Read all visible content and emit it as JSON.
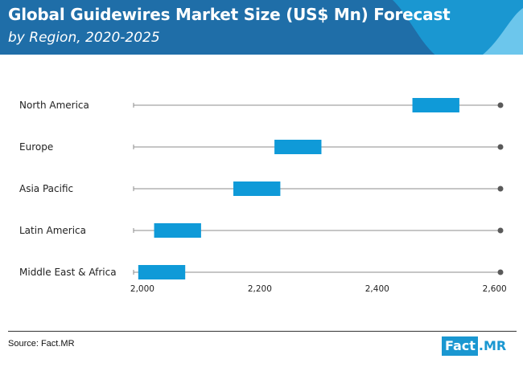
{
  "header": {
    "title": "Global Guidewires Market Size (US$ Mn) Forecast",
    "subtitle": "by Region, 2020-2025",
    "colors": {
      "band": "#1f6ea8",
      "wave_dark": "#1a97d1",
      "wave_light": "#6cc6ec"
    }
  },
  "chart_data": {
    "type": "bar",
    "subtype": "floating-range",
    "categories": [
      "North America",
      "Europe",
      "Asia Pacific",
      "Latin America",
      "Middle East & Africa"
    ],
    "ranges": [
      {
        "category": "North America",
        "low": 2460,
        "high": 2540
      },
      {
        "category": "Europe",
        "low": 2225,
        "high": 2305
      },
      {
        "category": "Asia Pacific",
        "low": 2155,
        "high": 2235
      },
      {
        "category": "Latin America",
        "low": 2020,
        "high": 2100
      },
      {
        "category": "Middle East & Africa",
        "low": 1993,
        "high": 2073
      }
    ],
    "xlim": [
      1985,
      2610
    ],
    "x_ticks": [
      2000,
      2200,
      2400,
      2600
    ],
    "x_tick_labels": [
      "2,000",
      "2,200",
      "2,400",
      "2,600"
    ],
    "xlabel": "",
    "ylabel": "",
    "grid": false,
    "legend": "none",
    "colors": {
      "bar": "#0f9ad8",
      "line": "#8c8c8c",
      "end_dot": "#5a5a5a"
    }
  },
  "footer": {
    "source": "Source: Fact.MR",
    "logo": {
      "part1": "Fact",
      "part2": ".MR"
    }
  }
}
